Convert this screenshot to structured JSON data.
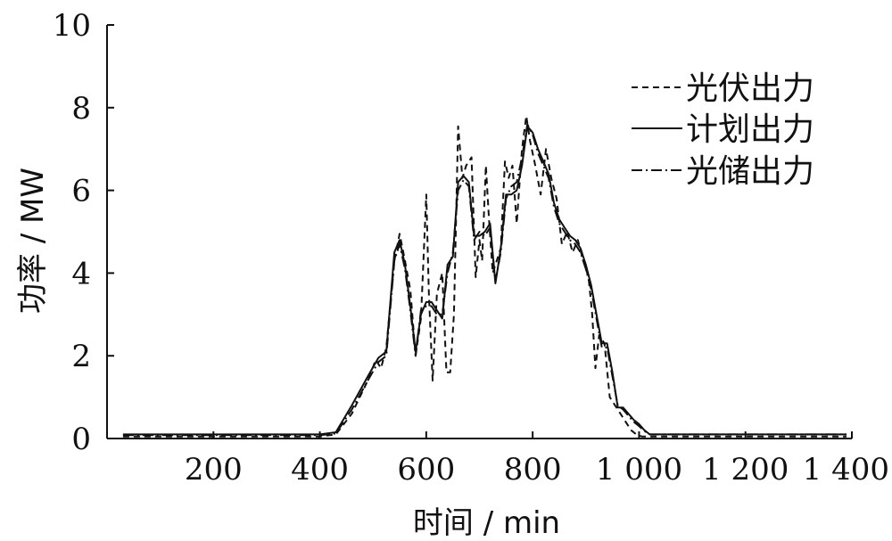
{
  "chart_data": {
    "type": "line",
    "xlabel": "时间 / min",
    "ylabel": "功率 / MW",
    "xlim": [
      0,
      1400
    ],
    "ylim": [
      0,
      10
    ],
    "xticks": [
      200,
      400,
      600,
      800,
      1000,
      1200,
      1400
    ],
    "xtick_labels": [
      "200",
      "400",
      "600",
      "800",
      "1 000",
      "1 200",
      "1 400"
    ],
    "yticks": [
      0,
      2,
      4,
      6,
      8,
      10
    ],
    "ytick_labels": [
      "0",
      "2",
      "4",
      "6",
      "8",
      "10"
    ],
    "grid": false,
    "legend_position": "top-right",
    "series": [
      {
        "name": "光伏出力",
        "style": "dashed",
        "x": [
          30,
          200,
          400,
          430,
          460,
          490,
          505,
          515,
          525,
          540,
          550,
          560,
          570,
          580,
          590,
          600,
          605,
          612,
          620,
          630,
          638,
          645,
          652,
          660,
          668,
          675,
          685,
          693,
          700,
          705,
          712,
          718,
          725,
          730,
          740,
          748,
          755,
          762,
          770,
          780,
          788,
          795,
          805,
          815,
          825,
          835,
          845,
          855,
          865,
          875,
          885,
          895,
          905,
          912,
          918,
          925,
          935,
          945,
          955,
          965,
          975,
          985,
          995,
          1005,
          1015,
          1025,
          1035,
          1100,
          1200,
          1300,
          1390
        ],
        "y": [
          0.05,
          0.05,
          0.05,
          0.1,
          0.6,
          1.4,
          1.9,
          1.7,
          2.2,
          4.3,
          4.95,
          4.3,
          3.6,
          2.0,
          2.9,
          5.9,
          3.5,
          1.4,
          3.5,
          4.0,
          1.6,
          1.6,
          3.0,
          7.55,
          6.3,
          6.6,
          6.8,
          3.9,
          4.8,
          4.3,
          6.6,
          5.3,
          4.0,
          4.2,
          4.6,
          6.7,
          6.3,
          6.6,
          5.2,
          7.0,
          7.8,
          7.2,
          6.6,
          5.9,
          7.0,
          6.3,
          5.8,
          4.7,
          5.0,
          4.5,
          4.8,
          4.3,
          3.9,
          3.0,
          1.7,
          2.5,
          2.3,
          1.0,
          0.8,
          0.6,
          0.4,
          0.2,
          0.1,
          0.05,
          0.05,
          0.05,
          0.05,
          0.05,
          0.05,
          0.05,
          0.05
        ]
      },
      {
        "name": "计划出力",
        "style": "solid",
        "x": [
          30,
          200,
          400,
          430,
          460,
          490,
          510,
          525,
          540,
          550,
          560,
          570,
          580,
          590,
          600,
          610,
          620,
          630,
          640,
          650,
          660,
          670,
          680,
          690,
          700,
          710,
          720,
          730,
          740,
          750,
          760,
          770,
          780,
          790,
          800,
          810,
          820,
          830,
          840,
          850,
          860,
          870,
          880,
          890,
          900,
          910,
          920,
          930,
          940,
          950,
          960,
          970,
          980,
          990,
          1000,
          1010,
          1020,
          1035,
          1100,
          1200,
          1300,
          1390
        ],
        "y": [
          0.1,
          0.1,
          0.1,
          0.15,
          0.8,
          1.5,
          1.95,
          2.1,
          4.5,
          4.8,
          4.2,
          3.2,
          2.1,
          3.0,
          3.3,
          3.3,
          3.1,
          2.9,
          4.2,
          4.4,
          6.2,
          6.35,
          6.2,
          4.9,
          4.9,
          5.0,
          5.2,
          3.75,
          4.6,
          5.9,
          5.9,
          6.0,
          6.6,
          7.55,
          7.4,
          7.0,
          6.7,
          6.4,
          5.7,
          5.3,
          5.1,
          4.9,
          4.8,
          4.6,
          4.2,
          3.7,
          3.0,
          2.3,
          2.3,
          1.6,
          0.75,
          0.75,
          0.6,
          0.45,
          0.35,
          0.2,
          0.1,
          0.1,
          0.1,
          0.1,
          0.1,
          0.1
        ]
      },
      {
        "name": "光储出力",
        "style": "dashdot",
        "x": [
          30,
          200,
          400,
          430,
          460,
          490,
          510,
          525,
          540,
          550,
          560,
          570,
          580,
          590,
          600,
          610,
          620,
          630,
          640,
          650,
          660,
          670,
          680,
          690,
          700,
          710,
          720,
          730,
          740,
          750,
          760,
          770,
          780,
          790,
          800,
          810,
          820,
          830,
          840,
          850,
          860,
          870,
          880,
          890,
          900,
          910,
          920,
          930,
          940,
          950,
          960,
          970,
          980,
          990,
          1000,
          1010,
          1020,
          1035,
          1100,
          1200,
          1300,
          1390
        ],
        "y": [
          0.08,
          0.08,
          0.08,
          0.12,
          0.7,
          1.4,
          1.85,
          2.0,
          4.3,
          4.7,
          4.1,
          3.1,
          2.0,
          3.1,
          3.2,
          3.2,
          3.0,
          3.0,
          4.0,
          4.5,
          6.0,
          6.25,
          6.1,
          4.8,
          5.0,
          4.9,
          5.1,
          3.8,
          4.5,
          5.8,
          6.1,
          6.2,
          6.8,
          7.6,
          7.35,
          6.9,
          6.6,
          6.3,
          5.6,
          5.2,
          5.0,
          4.8,
          4.7,
          4.5,
          4.1,
          3.6,
          2.9,
          2.2,
          2.2,
          1.5,
          0.8,
          0.7,
          0.55,
          0.4,
          0.3,
          0.18,
          0.1,
          0.1,
          0.1,
          0.1,
          0.1,
          0.1
        ]
      }
    ]
  }
}
